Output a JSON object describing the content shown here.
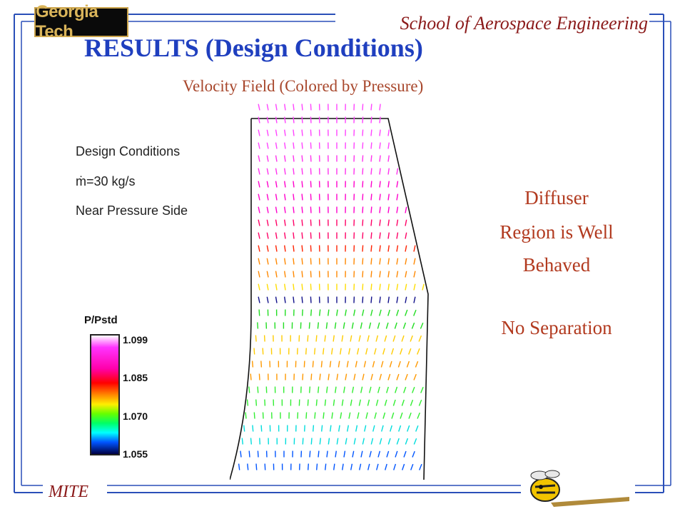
{
  "header": {
    "logo_text": "Georgia Tech",
    "school": "School of Aerospace Engineering"
  },
  "slide": {
    "title": "RESULTS (Design Conditions)",
    "subtitle": "Velocity Field (Colored by Pressure)"
  },
  "plot_info": {
    "lines": [
      "Design Conditions",
      "ṁ=30 kg/s",
      "Near Pressure Side"
    ]
  },
  "legend": {
    "title": "P/Pstd",
    "ticks": [
      "1.099",
      "1.085",
      "1.070",
      "1.055"
    ]
  },
  "notes": {
    "line1": "Diffuser",
    "line2": "Region is Well",
    "line3": "Behaved",
    "line4": "No Separation"
  },
  "footer": {
    "mite": "MITE"
  },
  "colors": {
    "title": "#1f3fbf",
    "accent": "#8b1a1a",
    "note": "#b23a1f",
    "frame": "#2a4fb8"
  }
}
